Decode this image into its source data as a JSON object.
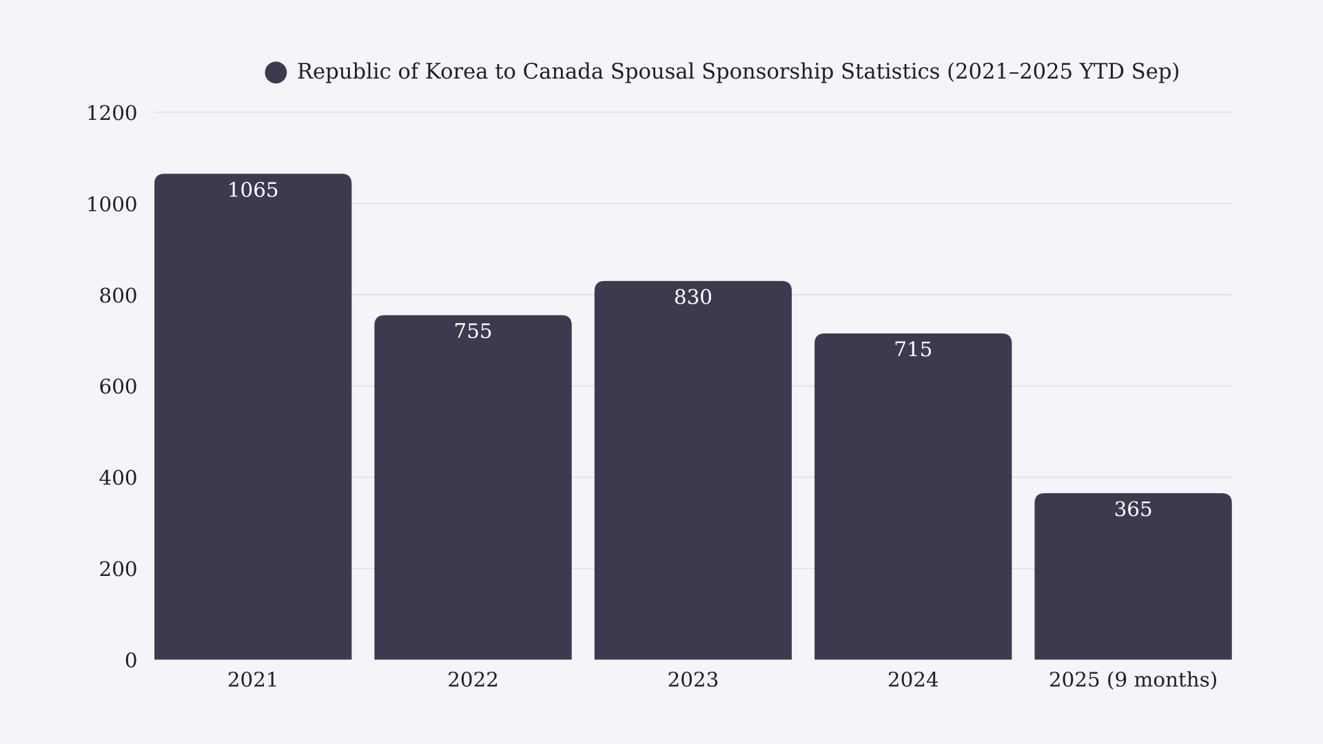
{
  "chart_data": {
    "type": "bar",
    "title": "",
    "xlabel": "",
    "ylabel": "",
    "legend": {
      "position": "top",
      "entries": [
        "Republic of Korea to Canada Spousal Sponsorship Statistics (2021–2025 YTD Sep)"
      ]
    },
    "categories": [
      "2021",
      "2022",
      "2023",
      "2024",
      "2025 (9 months)"
    ],
    "series": [
      {
        "name": "Republic of Korea to Canada Spousal Sponsorship Statistics (2021–2025 YTD Sep)",
        "values": [
          1065,
          755,
          830,
          715,
          365
        ],
        "color": "#3d3a50"
      }
    ],
    "data_labels": [
      "1065",
      "755",
      "830",
      "715",
      "365"
    ],
    "ylim": [
      0,
      1200
    ],
    "yticks": [
      "0",
      "200",
      "400",
      "600",
      "800",
      "1000",
      "1200"
    ],
    "grid": true,
    "colors": {
      "background": "#f4f5f8",
      "bar": "#3d3a50",
      "grid": "#d9dadf",
      "text": "#1f1d2b"
    }
  }
}
